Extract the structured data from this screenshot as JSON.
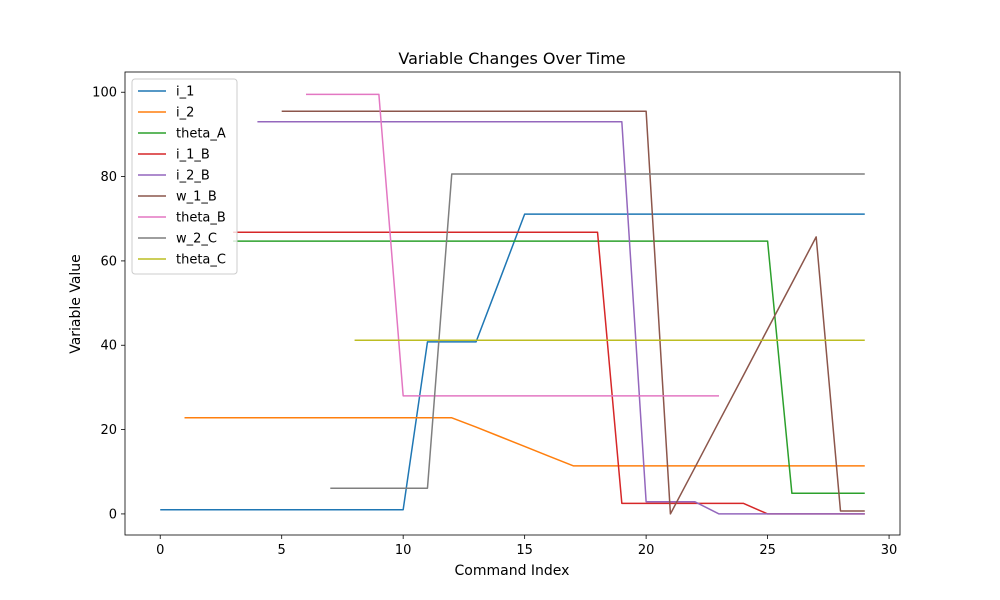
{
  "chart_data": {
    "type": "line",
    "title": "Variable Changes Over Time",
    "xlabel": "Command Index",
    "ylabel": "Variable Value",
    "xlim": [
      -1.45,
      30.45
    ],
    "ylim": [
      -5,
      104.8
    ],
    "xticks": [
      0,
      5,
      10,
      15,
      20,
      25,
      30
    ],
    "yticks": [
      0,
      20,
      40,
      60,
      80,
      100
    ],
    "grid": false,
    "legend_position": "upper-left",
    "series": [
      {
        "name": "i_1",
        "color": "#1f77b4",
        "points": [
          [
            0,
            1
          ],
          [
            1,
            1
          ],
          [
            2,
            1
          ],
          [
            3,
            1
          ],
          [
            4,
            1
          ],
          [
            5,
            1
          ],
          [
            6,
            1
          ],
          [
            7,
            1
          ],
          [
            8,
            1
          ],
          [
            9,
            1
          ],
          [
            10,
            1
          ],
          [
            11,
            40.8
          ],
          [
            12,
            40.8
          ],
          [
            13,
            40.8
          ],
          [
            14,
            55.9
          ],
          [
            15,
            71.1
          ],
          [
            16,
            71.1
          ],
          [
            17,
            71.1
          ],
          [
            18,
            71.1
          ],
          [
            19,
            71.1
          ],
          [
            20,
            71.1
          ],
          [
            21,
            71.1
          ],
          [
            22,
            71.1
          ],
          [
            23,
            71.1
          ],
          [
            24,
            71.1
          ],
          [
            25,
            71.1
          ],
          [
            26,
            71.1
          ],
          [
            27,
            71.1
          ],
          [
            28,
            71.1
          ],
          [
            29,
            71.1
          ]
        ]
      },
      {
        "name": "i_2",
        "color": "#ff7f0e",
        "points": [
          [
            1,
            22.8
          ],
          [
            2,
            22.8
          ],
          [
            3,
            22.8
          ],
          [
            4,
            22.8
          ],
          [
            5,
            22.8
          ],
          [
            6,
            22.8
          ],
          [
            7,
            22.8
          ],
          [
            8,
            22.8
          ],
          [
            9,
            22.8
          ],
          [
            10,
            22.8
          ],
          [
            11,
            22.8
          ],
          [
            12,
            22.8
          ],
          [
            13,
            20.6
          ],
          [
            14,
            18.3
          ],
          [
            15,
            16
          ],
          [
            16,
            13.7
          ],
          [
            17,
            11.4
          ],
          [
            18,
            11.4
          ],
          [
            19,
            11.4
          ],
          [
            20,
            11.4
          ],
          [
            21,
            11.4
          ],
          [
            22,
            11.4
          ],
          [
            23,
            11.4
          ],
          [
            24,
            11.4
          ],
          [
            25,
            11.4
          ],
          [
            26,
            11.4
          ],
          [
            27,
            11.4
          ],
          [
            28,
            11.4
          ],
          [
            29,
            11.4
          ]
        ]
      },
      {
        "name": "theta_A",
        "color": "#2ca02c",
        "points": [
          [
            3,
            64.7
          ],
          [
            4,
            64.7
          ],
          [
            5,
            64.7
          ],
          [
            6,
            64.7
          ],
          [
            7,
            64.7
          ],
          [
            8,
            64.7
          ],
          [
            9,
            64.7
          ],
          [
            10,
            64.7
          ],
          [
            11,
            64.7
          ],
          [
            12,
            64.7
          ],
          [
            13,
            64.7
          ],
          [
            14,
            64.7
          ],
          [
            15,
            64.7
          ],
          [
            16,
            64.7
          ],
          [
            17,
            64.7
          ],
          [
            18,
            64.7
          ],
          [
            19,
            64.7
          ],
          [
            20,
            64.7
          ],
          [
            21,
            64.7
          ],
          [
            22,
            64.7
          ],
          [
            23,
            64.7
          ],
          [
            24,
            64.7
          ],
          [
            25,
            64.7
          ],
          [
            26,
            4.9
          ],
          [
            27,
            4.9
          ],
          [
            28,
            4.9
          ],
          [
            29,
            4.9
          ]
        ]
      },
      {
        "name": "i_1_B",
        "color": "#d62728",
        "points": [
          [
            3,
            66.8
          ],
          [
            4,
            66.8
          ],
          [
            5,
            66.8
          ],
          [
            6,
            66.8
          ],
          [
            7,
            66.8
          ],
          [
            8,
            66.8
          ],
          [
            9,
            66.8
          ],
          [
            10,
            66.8
          ],
          [
            11,
            66.8
          ],
          [
            12,
            66.8
          ],
          [
            13,
            66.8
          ],
          [
            14,
            66.8
          ],
          [
            15,
            66.8
          ],
          [
            16,
            66.8
          ],
          [
            17,
            66.8
          ],
          [
            18,
            66.8
          ],
          [
            19,
            2.5
          ],
          [
            20,
            2.5
          ],
          [
            21,
            2.5
          ],
          [
            22,
            2.5
          ],
          [
            23,
            2.5
          ],
          [
            24,
            2.5
          ],
          [
            25,
            0
          ],
          [
            26,
            0
          ],
          [
            27,
            0
          ],
          [
            28,
            0
          ],
          [
            29,
            0
          ]
        ]
      },
      {
        "name": "i_2_B",
        "color": "#9467bd",
        "points": [
          [
            4,
            93
          ],
          [
            5,
            93
          ],
          [
            6,
            93
          ],
          [
            7,
            93
          ],
          [
            8,
            93
          ],
          [
            9,
            93
          ],
          [
            10,
            93
          ],
          [
            11,
            93
          ],
          [
            12,
            93
          ],
          [
            13,
            93
          ],
          [
            14,
            93
          ],
          [
            15,
            93
          ],
          [
            16,
            93
          ],
          [
            17,
            93
          ],
          [
            18,
            93
          ],
          [
            19,
            93
          ],
          [
            20,
            2.9
          ],
          [
            21,
            2.9
          ],
          [
            22,
            2.9
          ],
          [
            23,
            0
          ],
          [
            24,
            0
          ],
          [
            25,
            0
          ],
          [
            26,
            0
          ],
          [
            27,
            0
          ],
          [
            28,
            0
          ],
          [
            29,
            0
          ]
        ]
      },
      {
        "name": "w_1_B",
        "color": "#8c564b",
        "points": [
          [
            5,
            95.5
          ],
          [
            6,
            95.5
          ],
          [
            7,
            95.5
          ],
          [
            8,
            95.5
          ],
          [
            9,
            95.5
          ],
          [
            10,
            95.5
          ],
          [
            11,
            95.5
          ],
          [
            12,
            95.5
          ],
          [
            13,
            95.5
          ],
          [
            14,
            95.5
          ],
          [
            15,
            95.5
          ],
          [
            16,
            95.5
          ],
          [
            17,
            95.5
          ],
          [
            18,
            95.5
          ],
          [
            19,
            95.5
          ],
          [
            20,
            95.5
          ],
          [
            21,
            0
          ],
          [
            22,
            10.9
          ],
          [
            23,
            21.9
          ],
          [
            24,
            32.8
          ],
          [
            25,
            43.8
          ],
          [
            26,
            54.7
          ],
          [
            27,
            65.7
          ],
          [
            28,
            0.7
          ],
          [
            29,
            0.7
          ]
        ]
      },
      {
        "name": "theta_B",
        "color": "#e377c2",
        "points": [
          [
            6,
            99.5
          ],
          [
            7,
            99.5
          ],
          [
            8,
            99.5
          ],
          [
            9,
            99.5
          ],
          [
            10,
            28
          ],
          [
            11,
            28
          ],
          [
            12,
            28
          ],
          [
            13,
            28
          ],
          [
            14,
            28
          ],
          [
            15,
            28
          ],
          [
            16,
            28
          ],
          [
            17,
            28
          ],
          [
            18,
            28
          ],
          [
            19,
            28
          ],
          [
            20,
            28
          ],
          [
            21,
            28
          ],
          [
            22,
            28
          ],
          [
            23,
            28
          ]
        ]
      },
      {
        "name": "w_2_C",
        "color": "#7f7f7f",
        "points": [
          [
            7,
            6.1
          ],
          [
            8,
            6.1
          ],
          [
            9,
            6.1
          ],
          [
            10,
            6.1
          ],
          [
            11,
            6.1
          ],
          [
            12,
            80.6
          ],
          [
            13,
            80.6
          ],
          [
            14,
            80.6
          ],
          [
            15,
            80.6
          ],
          [
            16,
            80.6
          ],
          [
            17,
            80.6
          ],
          [
            18,
            80.6
          ],
          [
            19,
            80.6
          ],
          [
            20,
            80.6
          ],
          [
            21,
            80.6
          ],
          [
            22,
            80.6
          ],
          [
            23,
            80.6
          ],
          [
            24,
            80.6
          ],
          [
            25,
            80.6
          ],
          [
            26,
            80.6
          ],
          [
            27,
            80.6
          ],
          [
            28,
            80.6
          ],
          [
            29,
            80.6
          ]
        ]
      },
      {
        "name": "theta_C",
        "color": "#bcbd22",
        "points": [
          [
            8,
            41.2
          ],
          [
            9,
            41.2
          ],
          [
            10,
            41.2
          ],
          [
            11,
            41.2
          ],
          [
            12,
            41.2
          ],
          [
            13,
            41.2
          ],
          [
            14,
            41.2
          ],
          [
            15,
            41.2
          ],
          [
            16,
            41.2
          ],
          [
            17,
            41.2
          ],
          [
            18,
            41.2
          ],
          [
            19,
            41.2
          ],
          [
            20,
            41.2
          ],
          [
            21,
            41.2
          ],
          [
            22,
            41.2
          ],
          [
            23,
            41.2
          ],
          [
            24,
            41.2
          ],
          [
            25,
            41.2
          ],
          [
            26,
            41.2
          ],
          [
            27,
            41.2
          ],
          [
            28,
            41.2
          ],
          [
            29,
            41.2
          ]
        ]
      }
    ]
  }
}
